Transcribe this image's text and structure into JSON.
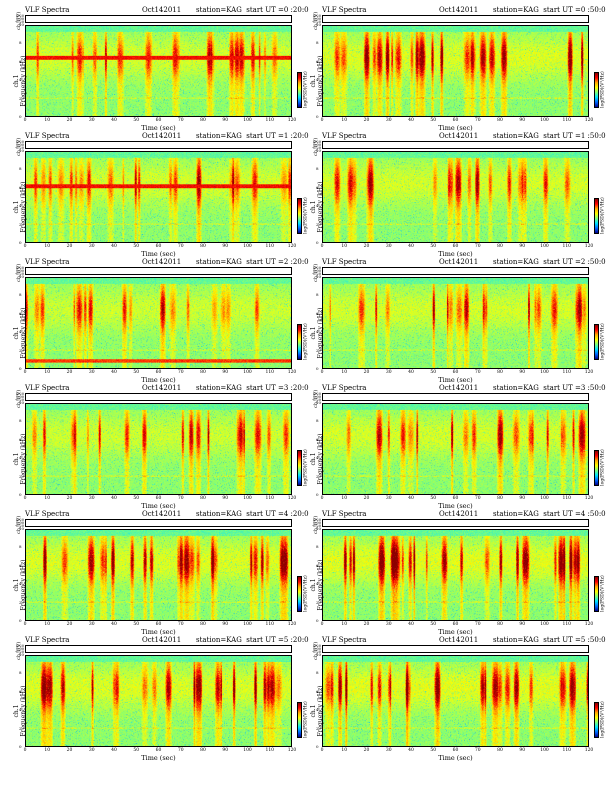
{
  "panels": [
    {
      "title": "VLF Spectra",
      "date": "Oct142011",
      "station": "station=KAG  start UT =0 :20:0"
    },
    {
      "title": "VLF Spectra",
      "date": "Oct142011",
      "station": "station=KAG  start UT =0 :50:0"
    },
    {
      "title": "VLF Spectra",
      "date": "Oct142011",
      "station": "station=KAG  start UT =1 :20:0"
    },
    {
      "title": "VLF Spectra",
      "date": "Oct142011",
      "station": "station=KAG  start UT =1 :50:0"
    },
    {
      "title": "VLF Spectra",
      "date": "Oct142011",
      "station": "station=KAG  start UT =2 :20:0"
    },
    {
      "title": "VLF Spectra",
      "date": "Oct142011",
      "station": "station=KAG  start UT =2 :50:0"
    },
    {
      "title": "VLF Spectra",
      "date": "Oct142011",
      "station": "station=KAG  start UT =3 :20:0"
    },
    {
      "title": "VLF Spectra",
      "date": "Oct142011",
      "station": "station=KAG  start UT =3 :50:0"
    },
    {
      "title": "VLF Spectra",
      "date": "Oct142011",
      "station": "station=KAG  start UT =4 :20:0"
    },
    {
      "title": "VLF Spectra",
      "date": "Oct142011",
      "station": "station=KAG  start UT =4 :50:0"
    },
    {
      "title": "VLF Spectra",
      "date": "Oct142011",
      "station": "station=KAG  start UT =5 :20:0"
    },
    {
      "title": "VLF Spectra",
      "date": "Oct142011",
      "station": "station=KAG  start UT =5 :50:0"
    }
  ],
  "ts_label": "ch.1(V)",
  "ts_ticks": [
    "0.20",
    "0.00",
    "-0.20"
  ],
  "ylabel_line1": "ch.1",
  "ylabel_line2": "Frequency (kHz)",
  "xlabel": "Time (sec)",
  "cbar_label": "log(PSD)(V²/Hz)",
  "chart_data": {
    "type": "heatmap",
    "title": "VLF Spectra",
    "xlabel": "Time (sec)",
    "ylabel": "Frequency (kHz)",
    "x_ticks": [
      0,
      10,
      20,
      30,
      40,
      50,
      60,
      70,
      80,
      90,
      100,
      110,
      120
    ],
    "y_ticks": [
      0,
      2,
      4,
      6,
      8,
      10
    ],
    "xlim": [
      0,
      120
    ],
    "ylim": [
      0,
      10
    ],
    "colormap": [
      "#00008b",
      "#0066ff",
      "#00e5ff",
      "#7cff7c",
      "#ffff00",
      "#ffaa00",
      "#ff0000",
      "#8b0000"
    ],
    "spectra_levels": [
      3,
      4,
      3,
      3,
      2,
      3,
      2,
      3,
      4,
      5,
      4,
      5
    ],
    "tone_band_kHz": [
      6.5,
      null,
      6.2,
      null,
      null,
      null,
      null,
      null,
      null,
      null,
      null,
      null
    ],
    "low_band_kHz": [
      null,
      null,
      null,
      null,
      0.8,
      null,
      null,
      null,
      null,
      null,
      null,
      null
    ]
  }
}
